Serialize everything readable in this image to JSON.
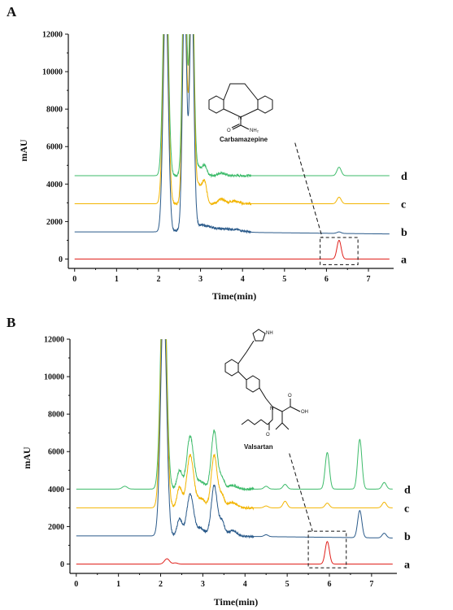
{
  "colors": {
    "a": "#e0201b",
    "b": "#2a5a8a",
    "c": "#f2b400",
    "d": "#3dbb6a",
    "axis": "#111111"
  },
  "chart_data": [
    {
      "panel_label": "A",
      "type": "line",
      "xlabel": "Time(min)",
      "ylabel": "mAU",
      "xlim": [
        -0.15,
        7.6
      ],
      "ylim": [
        -500,
        12000
      ],
      "xticks": [
        0,
        1,
        2,
        3,
        4,
        5,
        6,
        7
      ],
      "yticks": [
        0,
        2000,
        4000,
        6000,
        8000,
        10000,
        12000
      ],
      "grid": false,
      "legend": "none",
      "annotation": "Carbamazepine",
      "highlight_box": {
        "x": [
          5.85,
          6.75
        ],
        "y": [
          -300,
          1150
        ]
      },
      "callout_line": {
        "from": [
          5.25,
          6200
        ],
        "to": [
          5.9,
          1150
        ]
      },
      "series": [
        {
          "name": "a",
          "baseline": 0,
          "peaks": [
            [
              6.3,
              1000,
              0.05
            ]
          ],
          "spikes": []
        },
        {
          "name": "b",
          "baseline": 1450,
          "peaks": [
            [
              2.9,
              300,
              0.25
            ],
            [
              3.3,
              150,
              0.3
            ],
            [
              3.8,
              120,
              0.2
            ],
            [
              6.3,
              80,
              0.05
            ]
          ],
          "spikes": [
            [
              2.17,
              12500,
              0.06
            ],
            [
              2.62,
              12500,
              0.05
            ],
            [
              2.79,
              12500,
              0.05
            ]
          ]
        },
        {
          "name": "c",
          "baseline": 2950,
          "peaks": [
            [
              2.95,
              1000,
              0.1
            ],
            [
              3.1,
              900,
              0.05
            ],
            [
              3.5,
              250,
              0.08
            ],
            [
              3.8,
              150,
              0.1
            ],
            [
              6.3,
              350,
              0.05
            ]
          ],
          "spikes": [
            [
              2.17,
              12500,
              0.06
            ],
            [
              2.62,
              12500,
              0.05
            ],
            [
              2.79,
              12500,
              0.05
            ]
          ]
        },
        {
          "name": "d",
          "baseline": 4450,
          "peaks": [
            [
              2.95,
              450,
              0.1
            ],
            [
              3.1,
              400,
              0.05
            ],
            [
              3.5,
              150,
              0.08
            ],
            [
              6.3,
              450,
              0.05
            ]
          ],
          "spikes": [
            [
              2.17,
              12500,
              0.06
            ],
            [
              2.62,
              12500,
              0.05
            ],
            [
              2.79,
              12500,
              0.05
            ]
          ]
        }
      ]
    },
    {
      "panel_label": "B",
      "type": "line",
      "xlabel": "Time(min)",
      "ylabel": "mAU",
      "xlim": [
        -0.15,
        7.6
      ],
      "ylim": [
        -500,
        12000
      ],
      "xticks": [
        0,
        1,
        2,
        3,
        4,
        5,
        6,
        7
      ],
      "yticks": [
        0,
        2000,
        4000,
        6000,
        8000,
        10000,
        12000
      ],
      "grid": false,
      "legend": "none",
      "annotation": "Valsartan",
      "highlight_box": {
        "x": [
          5.5,
          6.4
        ],
        "y": [
          -200,
          1750
        ]
      },
      "callout_line": {
        "from": [
          5.05,
          5900
        ],
        "to": [
          5.6,
          1750
        ]
      },
      "series": [
        {
          "name": "a",
          "baseline": 0,
          "peaks": [
            [
              2.15,
              280,
              0.06
            ],
            [
              2.35,
              60,
              0.05
            ],
            [
              5.95,
              1200,
              0.05
            ]
          ],
          "spikes": []
        },
        {
          "name": "b",
          "baseline": 1500,
          "peaks": [
            [
              2.45,
              900,
              0.06
            ],
            [
              2.7,
              2200,
              0.08
            ],
            [
              2.95,
              400,
              0.1
            ],
            [
              3.27,
              2700,
              0.07
            ],
            [
              3.45,
              800,
              0.06
            ],
            [
              3.7,
              300,
              0.1
            ],
            [
              4.5,
              100,
              0.05
            ],
            [
              6.72,
              1450,
              0.05
            ],
            [
              7.3,
              250,
              0.05
            ]
          ],
          "spikes": [
            [
              2.07,
              12500,
              0.07
            ]
          ]
        },
        {
          "name": "c",
          "baseline": 3000,
          "peaks": [
            [
              2.45,
              1100,
              0.06
            ],
            [
              2.7,
              2800,
              0.08
            ],
            [
              2.95,
              500,
              0.1
            ],
            [
              3.27,
              2800,
              0.07
            ],
            [
              3.45,
              700,
              0.06
            ],
            [
              3.7,
              300,
              0.1
            ],
            [
              4.5,
              100,
              0.05
            ],
            [
              4.95,
              350,
              0.05
            ],
            [
              5.95,
              250,
              0.05
            ],
            [
              7.3,
              300,
              0.05
            ]
          ],
          "spikes": [
            [
              2.07,
              12500,
              0.07
            ]
          ]
        },
        {
          "name": "d",
          "baseline": 4000,
          "peaks": [
            [
              1.15,
              150,
              0.06
            ],
            [
              2.45,
              1000,
              0.06
            ],
            [
              2.7,
              2800,
              0.08
            ],
            [
              2.95,
              400,
              0.1
            ],
            [
              3.27,
              3100,
              0.07
            ],
            [
              3.45,
              600,
              0.06
            ],
            [
              3.7,
              200,
              0.1
            ],
            [
              4.5,
              150,
              0.05
            ],
            [
              4.95,
              250,
              0.05
            ],
            [
              5.95,
              1950,
              0.05
            ],
            [
              6.72,
              2650,
              0.05
            ],
            [
              7.3,
              350,
              0.05
            ]
          ],
          "spikes": [
            [
              2.07,
              12500,
              0.07
            ]
          ]
        }
      ]
    }
  ]
}
